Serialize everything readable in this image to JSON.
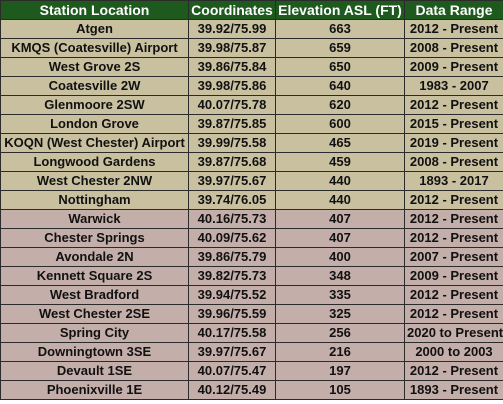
{
  "colors": {
    "header_bg": "#1e5a1e",
    "header_text": "#ffffff",
    "group_a_bg": "#c9c0a0",
    "group_b_bg": "#c4aea9",
    "border": "#2b2b2b"
  },
  "table": {
    "headers": [
      "Station Location",
      "Coordinates",
      "Elevation ASL (FT)",
      "Data Range"
    ],
    "rows": [
      {
        "group": "tan",
        "cells": [
          "Atgen",
          "39.92/75.99",
          "663",
          "2012 - Present"
        ]
      },
      {
        "group": "tan",
        "cells": [
          "KMQS (Coatesville) Airport",
          "39.98/75.87",
          "659",
          "2008 - Present"
        ]
      },
      {
        "group": "tan",
        "cells": [
          "West Grove 2S",
          "39.86/75.84",
          "650",
          "2009 - Present"
        ]
      },
      {
        "group": "tan",
        "cells": [
          "Coatesville 2W",
          "39.98/75.86",
          "640",
          "1983 - 2007"
        ]
      },
      {
        "group": "tan",
        "cells": [
          "Glenmoore 2SW",
          "40.07/75.78",
          "620",
          "2012 - Present"
        ]
      },
      {
        "group": "tan",
        "cells": [
          "London Grove",
          "39.87/75.85",
          "600",
          "2015 - Present"
        ]
      },
      {
        "group": "tan",
        "cells": [
          "KOQN (West Chester) Airport",
          "39.99/75.58",
          "465",
          "2019 - Present"
        ]
      },
      {
        "group": "tan",
        "cells": [
          "Longwood Gardens",
          "39.87/75.68",
          "459",
          "2008 - Present"
        ]
      },
      {
        "group": "tan",
        "cells": [
          "West Chester 2NW",
          "39.97/75.67",
          "440",
          "1893 - 2017"
        ]
      },
      {
        "group": "tan",
        "cells": [
          "Nottingham",
          "39.74/76.05",
          "440",
          "2012 - Present"
        ]
      },
      {
        "group": "mauve",
        "cells": [
          "Warwick",
          "40.16/75.73",
          "407",
          "2012 - Present"
        ]
      },
      {
        "group": "mauve",
        "cells": [
          "Chester Springs",
          "40.09/75.62",
          "407",
          "2012 - Present"
        ]
      },
      {
        "group": "mauve",
        "cells": [
          "Avondale 2N",
          "39.86/75.79",
          "400",
          "2007 - Present"
        ]
      },
      {
        "group": "mauve",
        "cells": [
          "Kennett Square 2S",
          "39.82/75.73",
          "348",
          "2009 - Present"
        ]
      },
      {
        "group": "mauve",
        "cells": [
          "West Bradford",
          "39.94/75.52",
          "335",
          "2012 - Present"
        ]
      },
      {
        "group": "mauve",
        "cells": [
          "West Chester 2SE",
          "39.96/75.59",
          "325",
          "2012 - Present"
        ]
      },
      {
        "group": "mauve",
        "cells": [
          "Spring City",
          "40.17/75.58",
          "256",
          "2020 to Present"
        ]
      },
      {
        "group": "mauve",
        "cells": [
          "Downingtown 3SE",
          "39.97/75.67",
          "216",
          "2000 to 2003"
        ]
      },
      {
        "group": "mauve",
        "cells": [
          "Devault  1SE",
          "40.07/75.47",
          "197",
          "2012 - Present"
        ]
      },
      {
        "group": "mauve",
        "cells": [
          "Phoenixville 1E",
          "40.12/75.49",
          "105",
          "1893 - Present"
        ]
      }
    ]
  }
}
